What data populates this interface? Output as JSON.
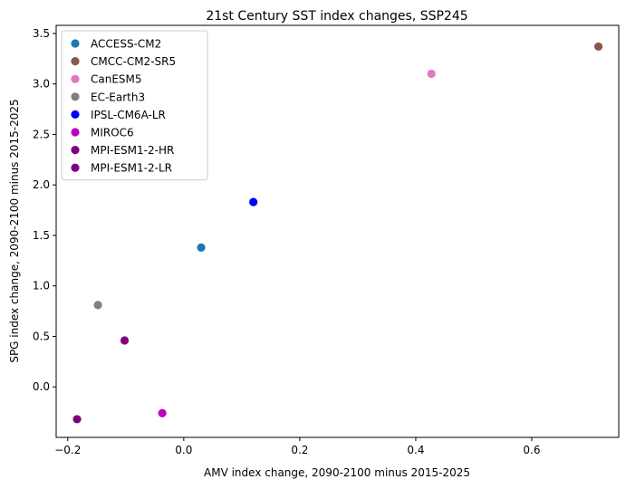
{
  "chart_data": {
    "type": "scatter",
    "title": "21st Century SST index changes, SSP245",
    "xlabel": "AMV index change, 2090-2100 minus 2015-2025",
    "ylabel": "SPG index change, 2090-2100 minus 2015-2025",
    "xlim": [
      -0.22,
      0.75
    ],
    "ylim": [
      -0.5,
      3.58
    ],
    "xticks": [
      -0.2,
      0.0,
      0.2,
      0.4,
      0.6
    ],
    "xtick_labels": [
      "−0.2",
      "0.0",
      "0.2",
      "0.4",
      "0.6"
    ],
    "yticks": [
      0.0,
      0.5,
      1.0,
      1.5,
      2.0,
      2.5,
      3.0,
      3.5
    ],
    "ytick_labels": [
      "0.0",
      "0.5",
      "1.0",
      "1.5",
      "2.0",
      "2.5",
      "3.0",
      "3.5"
    ],
    "grid": false,
    "legend_position": "top-left",
    "series": [
      {
        "name": "ACCESS-CM2",
        "color": "#1f77b4",
        "x": 0.03,
        "y": 1.38
      },
      {
        "name": "CMCC-CM2-SR5",
        "color": "#8c564b",
        "x": 0.715,
        "y": 3.37
      },
      {
        "name": "CanESM5",
        "color": "#e377c2",
        "x": 0.427,
        "y": 3.1
      },
      {
        "name": "EC-Earth3",
        "color": "#7f7f7f",
        "x": -0.148,
        "y": 0.81
      },
      {
        "name": "IPSL-CM6A-LR",
        "color": "#0000ff",
        "x": 0.12,
        "y": 1.83
      },
      {
        "name": "MIROC6",
        "color": "#bf00bf",
        "x": -0.037,
        "y": -0.26
      },
      {
        "name": "MPI-ESM1-2-HR",
        "color": "#800080",
        "x": -0.102,
        "y": 0.46
      },
      {
        "name": "MPI-ESM1-2-LR",
        "color": "#800080",
        "x": -0.184,
        "y": -0.32
      }
    ]
  }
}
